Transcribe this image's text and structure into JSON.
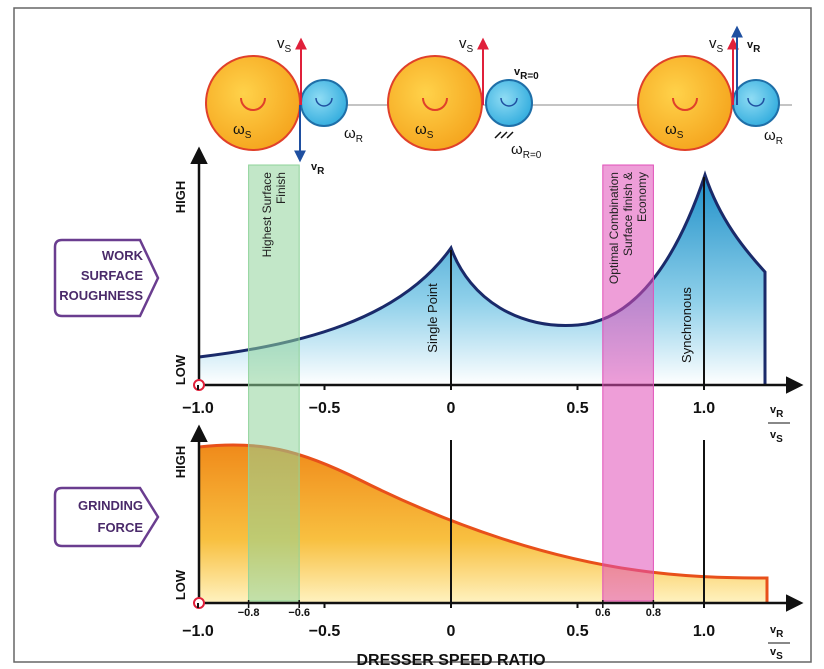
{
  "diagrams": [
    {
      "v_s": {
        "main": "v",
        "sub": "S"
      },
      "v_r": {
        "main": "v",
        "sub": "R"
      },
      "omega_s": {
        "main": "ω",
        "sub": "S"
      },
      "omega_r": {
        "main": "ω",
        "sub": "R"
      }
    },
    {
      "v_s": {
        "main": "v",
        "sub": "S"
      },
      "v_r": {
        "main": "v",
        "sub": "R=0"
      },
      "omega_s": {
        "main": "ω",
        "sub": "S"
      },
      "omega_r": {
        "main": "ω",
        "sub": "R=0"
      }
    },
    {
      "v_s": {
        "main": "v",
        "sub": "S"
      },
      "v_r": {
        "main": "v",
        "sub": "R"
      },
      "omega_s": {
        "main": "ω",
        "sub": "S"
      },
      "omega_r": {
        "main": "ω",
        "sub": "R"
      }
    }
  ],
  "roughness_panel": {
    "label": [
      "WORK",
      "SURFACE",
      "ROUGHNESS"
    ],
    "high": "HIGH",
    "low": "LOW",
    "annotations": [
      "Single Point",
      "Synchronous"
    ]
  },
  "force_panel": {
    "label": [
      "GRINDING",
      "FORCE"
    ],
    "high": "HIGH",
    "low": "LOW"
  },
  "x_axis": {
    "ticks": [
      {
        "value": -1,
        "label": "−1.0"
      },
      {
        "value": -0.5,
        "label": "−0.5"
      },
      0,
      0.5,
      {
        "value": 1,
        "label": "1.0"
      }
    ],
    "ratio_label": {
      "num": {
        "main": "v",
        "sub": "R"
      },
      "den": {
        "main": "v",
        "sub": "S"
      }
    },
    "title": "DRESSER SPEED RATIO"
  },
  "bands": [
    {
      "from": {
        "value": -0.8,
        "label": "−0.8"
      },
      "to": {
        "value": -0.6,
        "label": "−0.6"
      },
      "color": "#8fd39a",
      "lines": [
        "Highest Surface",
        "Finish"
      ]
    },
    {
      "from": 0.6,
      "to": 0.8,
      "color": "#e04fb8",
      "lines": [
        "Optimal Combination",
        "Surface finish &",
        "Economy"
      ]
    }
  ]
}
